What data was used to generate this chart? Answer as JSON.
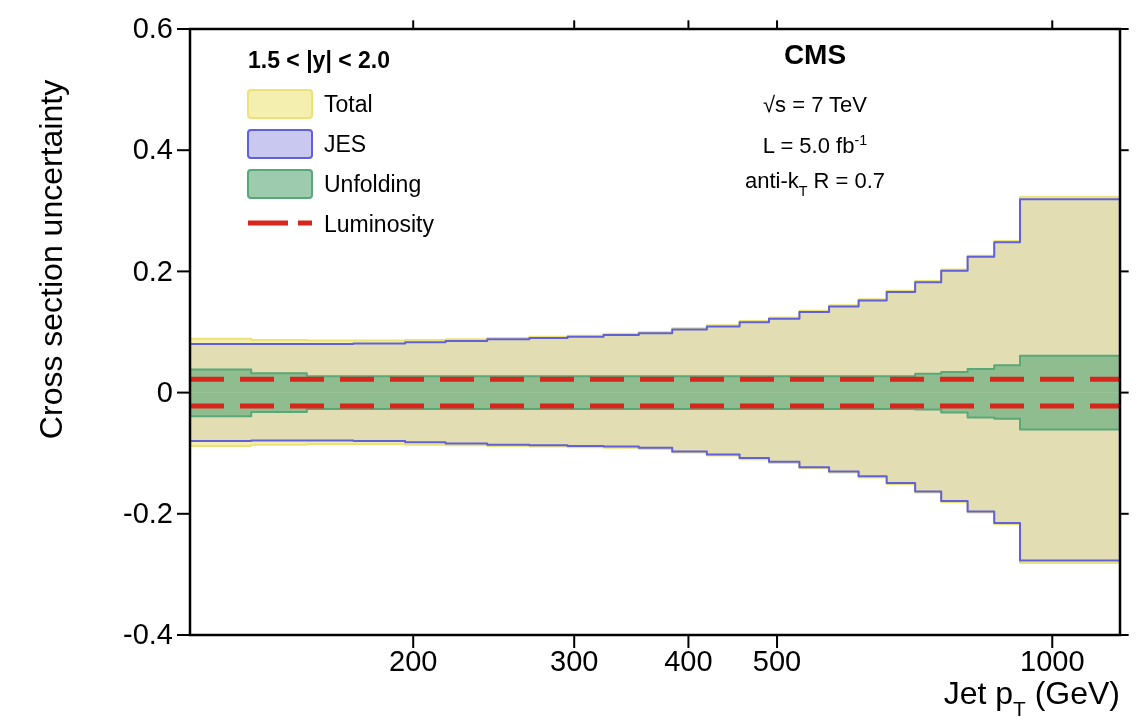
{
  "chart_data": {
    "type": "area",
    "xlabel": "Jet p$_{T}$ (GeV)",
    "ylabel": "Cross section uncertainty",
    "legend_title": "1.5 < |y| < 2.0",
    "annotations": [
      "CMS",
      "√s = 7 TeV",
      "L = 5.0 fb$^{-1}$",
      "anti-k$_{T}$ R = 0.7"
    ],
    "log": "x",
    "legend": "top left",
    "xlim": [
      114,
      1186
    ],
    "ylim": [
      -0.4,
      0.6
    ],
    "xticks": [
      200,
      300,
      400,
      500,
      1000
    ],
    "yticks": [
      -0.4,
      -0.2,
      0,
      0.2,
      0.4,
      0.6
    ],
    "series": [
      {
        "name": "Total",
        "color": "#ece27a",
        "x": [
          114,
          133,
          133,
          153,
          153,
          172,
          172,
          196,
          196,
          217,
          217,
          241,
          241,
          268,
          268,
          295,
          295,
          323,
          323,
          353,
          353,
          384,
          384,
          419,
          419,
          455,
          455,
          490,
          490,
          529,
          529,
          570,
          570,
          614,
          614,
          659,
          659,
          708,
          708,
          756,
          756,
          808,
          808,
          864,
          864,
          922,
          922,
          1186
        ],
        "values": [
          0.089,
          0.089,
          0.087,
          0.087,
          0.086,
          0.086,
          0.086,
          0.086,
          0.087,
          0.087,
          0.088,
          0.088,
          0.09,
          0.09,
          0.092,
          0.092,
          0.094,
          0.094,
          0.097,
          0.097,
          0.1,
          0.1,
          0.106,
          0.106,
          0.111,
          0.111,
          0.118,
          0.118,
          0.124,
          0.124,
          0.135,
          0.135,
          0.144,
          0.144,
          0.154,
          0.154,
          0.168,
          0.168,
          0.184,
          0.184,
          0.203,
          0.203,
          0.226,
          0.226,
          0.25,
          0.25,
          0.323,
          0.323
        ]
      },
      {
        "color": "#ece27a",
        "x": [
          114,
          133,
          133,
          153,
          153,
          172,
          172,
          196,
          196,
          217,
          217,
          241,
          241,
          268,
          268,
          295,
          295,
          323,
          323,
          353,
          353,
          384,
          384,
          419,
          419,
          455,
          455,
          490,
          490,
          529,
          529,
          570,
          570,
          614,
          614,
          659,
          659,
          708,
          708,
          756,
          756,
          808,
          808,
          864,
          864,
          922,
          922,
          1186
        ],
        "values": [
          -0.088,
          -0.088,
          -0.086,
          -0.086,
          -0.085,
          -0.085,
          -0.085,
          -0.085,
          -0.086,
          -0.086,
          -0.087,
          -0.087,
          -0.088,
          -0.088,
          -0.089,
          -0.089,
          -0.09,
          -0.09,
          -0.091,
          -0.091,
          -0.093,
          -0.093,
          -0.099,
          -0.099,
          -0.104,
          -0.104,
          -0.11,
          -0.11,
          -0.116,
          -0.116,
          -0.125,
          -0.125,
          -0.132,
          -0.132,
          -0.14,
          -0.14,
          -0.151,
          -0.151,
          -0.165,
          -0.165,
          -0.181,
          -0.181,
          -0.198,
          -0.198,
          -0.217,
          -0.217,
          -0.281,
          -0.281
        ]
      },
      {
        "name": "JES",
        "color": "#6060d8",
        "x": [
          114,
          133,
          133,
          153,
          153,
          172,
          172,
          196,
          196,
          217,
          217,
          241,
          241,
          268,
          268,
          295,
          295,
          323,
          323,
          353,
          353,
          384,
          384,
          419,
          419,
          455,
          455,
          490,
          490,
          529,
          529,
          570,
          570,
          614,
          614,
          659,
          659,
          708,
          708,
          756,
          756,
          808,
          808,
          864,
          864,
          922,
          922,
          1186
        ],
        "values": [
          0.08,
          0.08,
          0.08,
          0.08,
          0.08,
          0.08,
          0.081,
          0.081,
          0.083,
          0.083,
          0.085,
          0.085,
          0.088,
          0.088,
          0.09,
          0.09,
          0.092,
          0.092,
          0.095,
          0.095,
          0.098,
          0.098,
          0.104,
          0.104,
          0.109,
          0.109,
          0.116,
          0.116,
          0.122,
          0.122,
          0.133,
          0.133,
          0.142,
          0.142,
          0.152,
          0.152,
          0.166,
          0.166,
          0.182,
          0.182,
          0.201,
          0.201,
          0.224,
          0.224,
          0.248,
          0.248,
          0.319,
          0.319
        ]
      },
      {
        "color": "#6060d8",
        "x": [
          114,
          133,
          133,
          153,
          153,
          172,
          172,
          196,
          196,
          217,
          217,
          241,
          241,
          268,
          268,
          295,
          295,
          323,
          323,
          353,
          353,
          384,
          384,
          419,
          419,
          455,
          455,
          490,
          490,
          529,
          529,
          570,
          570,
          614,
          614,
          659,
          659,
          708,
          708,
          756,
          756,
          808,
          808,
          864,
          864,
          922,
          922,
          1186
        ],
        "values": [
          -0.08,
          -0.08,
          -0.079,
          -0.079,
          -0.079,
          -0.079,
          -0.08,
          -0.08,
          -0.082,
          -0.082,
          -0.084,
          -0.084,
          -0.086,
          -0.086,
          -0.087,
          -0.087,
          -0.088,
          -0.088,
          -0.089,
          -0.089,
          -0.091,
          -0.091,
          -0.097,
          -0.097,
          -0.102,
          -0.102,
          -0.108,
          -0.108,
          -0.114,
          -0.114,
          -0.123,
          -0.123,
          -0.13,
          -0.13,
          -0.138,
          -0.138,
          -0.149,
          -0.149,
          -0.163,
          -0.163,
          -0.179,
          -0.179,
          -0.196,
          -0.196,
          -0.215,
          -0.215,
          -0.277,
          -0.277
        ]
      },
      {
        "name": "Unfolding",
        "color": "#5aa878",
        "x": [
          114,
          133,
          133,
          153,
          153,
          172,
          172,
          196,
          196,
          217,
          217,
          241,
          241,
          268,
          268,
          295,
          295,
          323,
          323,
          353,
          353,
          384,
          384,
          419,
          419,
          455,
          455,
          490,
          490,
          529,
          529,
          570,
          570,
          614,
          614,
          659,
          659,
          708,
          708,
          756,
          756,
          808,
          808,
          864,
          864,
          922,
          922,
          1186
        ],
        "values": [
          0.038,
          0.038,
          0.032,
          0.032,
          0.027,
          0.027,
          0.027,
          0.027,
          0.027,
          0.027,
          0.027,
          0.027,
          0.027,
          0.027,
          0.027,
          0.027,
          0.027,
          0.027,
          0.027,
          0.027,
          0.027,
          0.027,
          0.027,
          0.027,
          0.027,
          0.027,
          0.027,
          0.027,
          0.027,
          0.027,
          0.027,
          0.027,
          0.027,
          0.027,
          0.027,
          0.027,
          0.027,
          0.027,
          0.031,
          0.031,
          0.034,
          0.034,
          0.039,
          0.039,
          0.045,
          0.045,
          0.061,
          0.061
        ]
      },
      {
        "color": "#5aa878",
        "x": [
          114,
          133,
          133,
          153,
          153,
          172,
          172,
          196,
          196,
          217,
          217,
          241,
          241,
          268,
          268,
          295,
          295,
          323,
          323,
          353,
          353,
          384,
          384,
          419,
          419,
          455,
          455,
          490,
          490,
          529,
          529,
          570,
          570,
          614,
          614,
          659,
          659,
          708,
          708,
          756,
          756,
          808,
          808,
          864,
          864,
          922,
          922,
          1186
        ],
        "values": [
          -0.039,
          -0.039,
          -0.032,
          -0.032,
          -0.027,
          -0.027,
          -0.027,
          -0.027,
          -0.027,
          -0.027,
          -0.027,
          -0.027,
          -0.027,
          -0.027,
          -0.027,
          -0.027,
          -0.027,
          -0.027,
          -0.027,
          -0.027,
          -0.027,
          -0.027,
          -0.027,
          -0.027,
          -0.027,
          -0.027,
          -0.027,
          -0.027,
          -0.027,
          -0.027,
          -0.027,
          -0.027,
          -0.027,
          -0.027,
          -0.027,
          -0.027,
          -0.027,
          -0.027,
          -0.028,
          -0.028,
          -0.033,
          -0.033,
          -0.041,
          -0.041,
          -0.043,
          -0.043,
          -0.061,
          -0.061
        ]
      },
      {
        "name": "Luminosity",
        "type": "line",
        "line_style": "dashed",
        "color": "#d8261c",
        "x": [
          114,
          1186
        ],
        "values": [
          0.022,
          0.022
        ]
      },
      {
        "type": "line",
        "line_style": "dashed",
        "color": "#d8261c",
        "x": [
          114,
          1186
        ],
        "values": [
          -0.022,
          -0.022
        ]
      }
    ]
  }
}
